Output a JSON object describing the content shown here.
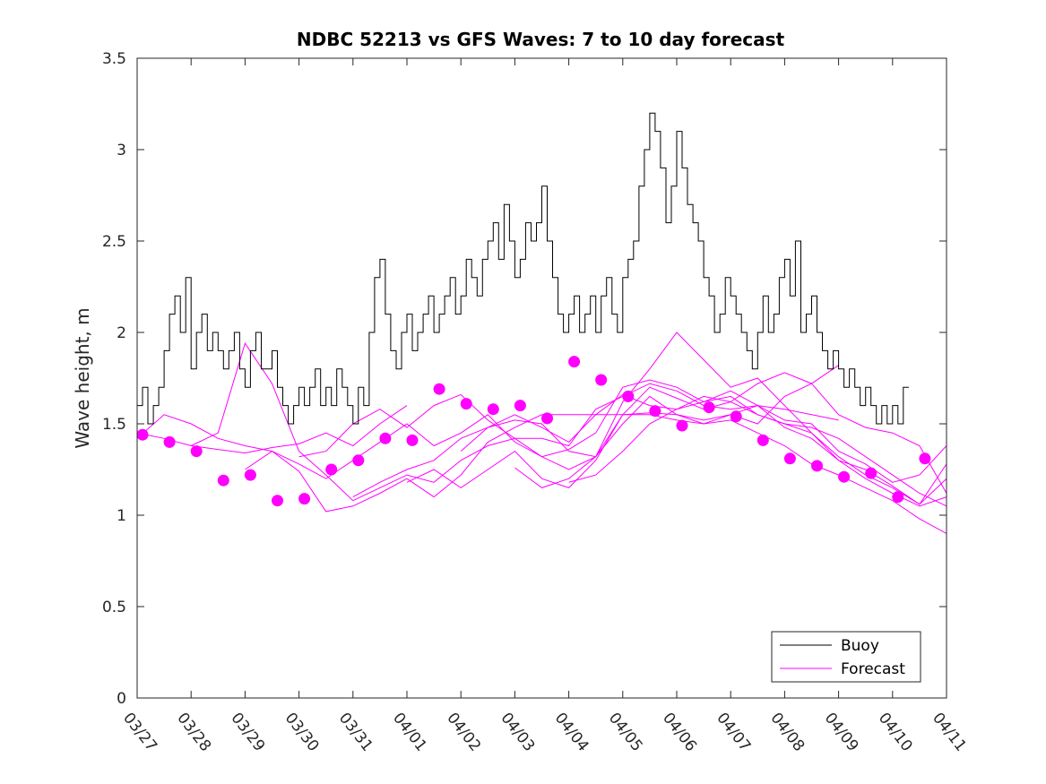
{
  "chart_data": {
    "type": "line",
    "title": "NDBC 52213 vs GFS Waves: 7 to 10 day forecast",
    "xlabel": "",
    "ylabel": "Wave height, m",
    "xlim": [
      0,
      15
    ],
    "ylim": [
      0,
      3.5
    ],
    "x_tick_labels": [
      "03/27",
      "03/28",
      "03/29",
      "03/30",
      "03/31",
      "04/01",
      "04/02",
      "04/03",
      "04/04",
      "04/05",
      "04/06",
      "04/07",
      "04/08",
      "04/09",
      "04/10",
      "04/11"
    ],
    "y_ticks": [
      0,
      0.5,
      1,
      1.5,
      2,
      2.5,
      3,
      3.5
    ],
    "y_tick_labels": [
      "0",
      "0.5",
      "1",
      "1.5",
      "2",
      "2.5",
      "3",
      "3.5"
    ],
    "legend": {
      "position": "bottom-right",
      "entries": [
        "Buoy",
        "Forecast"
      ]
    },
    "colors": {
      "buoy": "#000000",
      "forecast": "#ff00ff"
    },
    "series": [
      {
        "name": "Buoy",
        "x": [
          0.0,
          0.1,
          0.2,
          0.3,
          0.4,
          0.5,
          0.6,
          0.7,
          0.8,
          0.9,
          1.0,
          1.1,
          1.2,
          1.3,
          1.4,
          1.5,
          1.6,
          1.7,
          1.8,
          1.9,
          2.0,
          2.1,
          2.2,
          2.3,
          2.4,
          2.5,
          2.6,
          2.7,
          2.8,
          2.9,
          3.0,
          3.1,
          3.2,
          3.3,
          3.4,
          3.5,
          3.6,
          3.7,
          3.8,
          3.9,
          4.0,
          4.1,
          4.2,
          4.3,
          4.4,
          4.5,
          4.6,
          4.7,
          4.8,
          4.9,
          5.0,
          5.1,
          5.2,
          5.3,
          5.4,
          5.5,
          5.6,
          5.7,
          5.8,
          5.9,
          6.0,
          6.1,
          6.2,
          6.3,
          6.4,
          6.5,
          6.6,
          6.7,
          6.8,
          6.9,
          7.0,
          7.1,
          7.2,
          7.3,
          7.4,
          7.5,
          7.6,
          7.7,
          7.8,
          7.9,
          8.0,
          8.1,
          8.2,
          8.3,
          8.4,
          8.5,
          8.6,
          8.7,
          8.8,
          8.9,
          9.0,
          9.1,
          9.2,
          9.3,
          9.4,
          9.5,
          9.6,
          9.7,
          9.8,
          9.9,
          10.0,
          10.1,
          10.2,
          10.3,
          10.4,
          10.5,
          10.6,
          10.7,
          10.8,
          10.9,
          11.0,
          11.1,
          11.2,
          11.3,
          11.4,
          11.5,
          11.6,
          11.7,
          11.8,
          11.9,
          12.0,
          12.1,
          12.2,
          12.3,
          12.4,
          12.5,
          12.6,
          12.7,
          12.8,
          12.9,
          13.0,
          13.1,
          13.2,
          13.3,
          13.4,
          13.5,
          13.6,
          13.7,
          13.8,
          13.9,
          14.0,
          14.1,
          14.2
        ],
        "values": [
          1.6,
          1.7,
          1.5,
          1.6,
          1.7,
          1.9,
          2.1,
          2.2,
          2.0,
          2.3,
          1.8,
          2.0,
          2.1,
          1.9,
          2.0,
          1.9,
          1.8,
          1.9,
          2.0,
          1.8,
          1.7,
          1.9,
          2.0,
          1.8,
          1.8,
          1.9,
          1.7,
          1.6,
          1.5,
          1.6,
          1.7,
          1.6,
          1.7,
          1.8,
          1.6,
          1.7,
          1.6,
          1.8,
          1.7,
          1.6,
          1.5,
          1.7,
          1.6,
          2.0,
          2.3,
          2.4,
          2.1,
          1.9,
          1.8,
          2.0,
          2.1,
          1.9,
          2.0,
          2.1,
          2.2,
          2.0,
          2.1,
          2.2,
          2.3,
          2.1,
          2.2,
          2.4,
          2.3,
          2.2,
          2.4,
          2.5,
          2.6,
          2.4,
          2.7,
          2.5,
          2.3,
          2.4,
          2.6,
          2.5,
          2.6,
          2.8,
          2.5,
          2.3,
          2.1,
          2.0,
          2.1,
          2.2,
          2.0,
          2.1,
          2.2,
          2.0,
          2.2,
          2.3,
          2.1,
          2.0,
          2.3,
          2.4,
          2.5,
          2.8,
          3.0,
          3.2,
          3.1,
          2.9,
          2.6,
          2.8,
          3.1,
          2.9,
          2.7,
          2.6,
          2.5,
          2.3,
          2.2,
          2.0,
          2.1,
          2.3,
          2.2,
          2.1,
          2.0,
          1.9,
          1.8,
          2.0,
          2.2,
          2.0,
          2.1,
          2.3,
          2.4,
          2.2,
          2.5,
          2.0,
          2.1,
          2.2,
          2.0,
          1.9,
          1.8,
          1.9,
          1.8,
          1.7,
          1.8,
          1.7,
          1.6,
          1.7,
          1.6,
          1.5,
          1.6,
          1.5,
          1.6,
          1.5,
          1.7
        ]
      }
    ],
    "forecast_lines": [
      {
        "x": [
          0.0,
          0.5,
          1.0,
          1.5,
          2.0,
          2.5,
          3.0,
          3.5,
          4.0,
          4.5,
          5.0
        ],
        "values": [
          1.45,
          1.42,
          1.38,
          1.36,
          1.34,
          1.37,
          1.39,
          1.45,
          1.38,
          1.5,
          1.6
        ]
      },
      {
        "x": [
          0.0,
          0.5,
          1.0,
          1.5,
          2.0,
          2.5,
          3.0,
          3.5,
          4.0,
          4.5,
          5.0,
          5.5,
          6.0,
          6.5,
          7.0,
          7.5,
          8.0,
          8.5,
          9.0,
          9.5,
          10.0,
          10.5,
          11.0,
          11.5,
          12.0,
          12.5,
          13.0,
          13.5,
          14.0,
          14.5,
          15.0
        ],
        "values": [
          1.42,
          1.55,
          1.5,
          1.42,
          1.38,
          1.35,
          1.24,
          1.02,
          1.05,
          1.12,
          1.2,
          1.1,
          1.22,
          1.4,
          1.48,
          1.55,
          1.55,
          1.55,
          1.55,
          1.55,
          1.52,
          1.5,
          1.52,
          1.45,
          1.38,
          1.28,
          1.22,
          1.15,
          1.08,
          0.98,
          0.9
        ]
      },
      {
        "x": [
          1.0,
          1.5,
          2.0,
          2.5,
          3.0,
          3.5,
          4.0,
          4.5,
          5.0,
          5.5,
          6.0,
          6.5,
          7.0,
          7.5,
          8.0,
          8.5,
          9.0,
          9.5,
          10.0,
          10.5,
          11.0,
          11.5,
          12.0,
          12.5,
          13.0,
          13.5,
          14.0,
          14.5,
          15.0
        ],
        "values": [
          1.38,
          1.45,
          1.94,
          1.72,
          1.35,
          1.22,
          1.08,
          1.15,
          1.22,
          1.18,
          1.3,
          1.38,
          1.42,
          1.42,
          1.38,
          1.58,
          1.65,
          1.72,
          1.68,
          1.6,
          1.58,
          1.6,
          1.48,
          1.42,
          1.3,
          1.25,
          1.16,
          1.06,
          1.2
        ]
      },
      {
        "x": [
          2.0,
          2.5,
          3.0,
          3.5,
          4.0,
          4.5,
          5.0,
          5.5,
          6.0,
          6.5,
          7.0,
          7.5,
          8.0,
          8.5,
          9.0,
          9.5,
          10.0,
          10.5,
          11.0,
          11.5,
          12.0,
          12.5,
          13.0,
          13.5,
          14.0,
          14.5,
          15.0
        ],
        "values": [
          1.25,
          1.35,
          1.28,
          1.2,
          1.3,
          1.4,
          1.5,
          1.38,
          1.45,
          1.55,
          1.4,
          1.32,
          1.25,
          1.32,
          1.62,
          1.8,
          2.0,
          1.85,
          1.7,
          1.75,
          1.6,
          1.45,
          1.32,
          1.22,
          1.15,
          1.06,
          1.28
        ]
      },
      {
        "x": [
          3.0,
          3.5,
          4.0,
          4.5,
          5.0,
          5.5,
          6.0,
          6.5,
          7.0,
          7.5,
          8.0,
          8.5,
          9.0,
          9.5,
          10.0,
          10.5,
          11.0,
          11.5,
          12.0,
          12.5,
          13.0,
          13.5,
          14.0,
          14.5,
          15.0
        ],
        "values": [
          1.32,
          1.35,
          1.5,
          1.58,
          1.48,
          1.6,
          1.66,
          1.52,
          1.42,
          1.32,
          1.36,
          1.45,
          1.7,
          1.74,
          1.7,
          1.62,
          1.68,
          1.6,
          1.52,
          1.5,
          1.35,
          1.28,
          1.18,
          1.22,
          1.38
        ]
      },
      {
        "x": [
          4.0,
          4.5,
          5.0,
          5.5,
          6.0,
          6.5,
          7.0,
          7.5,
          8.0,
          8.5,
          9.0,
          9.5,
          10.0,
          10.5,
          11.0,
          11.5,
          12.0,
          12.5,
          13.0,
          13.5,
          14.0,
          14.5,
          15.0
        ],
        "values": [
          1.1,
          1.18,
          1.25,
          1.3,
          1.42,
          1.48,
          1.55,
          1.48,
          1.4,
          1.55,
          1.66,
          1.6,
          1.58,
          1.62,
          1.65,
          1.55,
          1.5,
          1.45,
          1.3,
          1.2,
          1.12,
          1.05,
          1.1
        ]
      },
      {
        "x": [
          5.0,
          5.5,
          6.0,
          6.5,
          7.0,
          7.5,
          8.0,
          8.5,
          9.0,
          9.5,
          10.0,
          10.5,
          11.0,
          11.5,
          12.0,
          12.5,
          13.0
        ],
        "values": [
          1.18,
          1.25,
          1.15,
          1.25,
          1.35,
          1.2,
          1.15,
          1.3,
          1.55,
          1.56,
          1.55,
          1.52,
          1.55,
          1.5,
          1.65,
          1.72,
          1.82
        ]
      },
      {
        "x": [
          6.0,
          6.5,
          7.0,
          7.5,
          8.0,
          8.5,
          9.0,
          9.5,
          10.0,
          10.5,
          11.0,
          11.5,
          12.0,
          12.5,
          13.0
        ],
        "values": [
          1.35,
          1.48,
          1.52,
          1.5,
          1.35,
          1.32,
          1.5,
          1.65,
          1.55,
          1.5,
          1.55,
          1.6,
          1.58,
          1.55,
          1.52
        ]
      },
      {
        "x": [
          7.0,
          7.5,
          8.0,
          8.5,
          9.0,
          9.5,
          10.0,
          10.5,
          11.0,
          11.5,
          12.0,
          12.5,
          13.0,
          13.5,
          14.0,
          14.5,
          15.0
        ],
        "values": [
          1.26,
          1.15,
          1.2,
          1.32,
          1.55,
          1.7,
          1.64,
          1.58,
          1.62,
          1.55,
          1.5,
          1.48,
          1.42,
          1.32,
          1.22,
          1.12,
          1.05
        ]
      },
      {
        "x": [
          8.0,
          8.5,
          9.0,
          9.5,
          10.0,
          10.5,
          11.0,
          11.5,
          12.0,
          12.5,
          13.0,
          13.5,
          14.0,
          14.5,
          15.0
        ],
        "values": [
          1.18,
          1.22,
          1.35,
          1.5,
          1.58,
          1.65,
          1.62,
          1.72,
          1.78,
          1.72,
          1.55,
          1.48,
          1.45,
          1.38,
          1.12
        ]
      }
    ],
    "forecast_markers": {
      "x": [
        0.1,
        0.6,
        1.1,
        1.6,
        2.1,
        2.6,
        3.1,
        3.6,
        4.1,
        4.6,
        5.1,
        5.6,
        6.1,
        6.6,
        7.1,
        7.6,
        8.1,
        8.6,
        9.1,
        9.6,
        10.1,
        10.6,
        11.1,
        11.6,
        12.1,
        12.6,
        13.1,
        13.6,
        14.1,
        14.6
      ],
      "values": [
        1.44,
        1.4,
        1.35,
        1.19,
        1.22,
        1.08,
        1.09,
        1.25,
        1.3,
        1.42,
        1.41,
        1.69,
        1.61,
        1.58,
        1.6,
        1.53,
        1.84,
        1.74,
        1.65,
        1.57,
        1.49,
        1.59,
        1.54,
        1.41,
        1.31,
        1.27,
        1.21,
        1.23,
        1.1,
        1.31
      ]
    }
  }
}
